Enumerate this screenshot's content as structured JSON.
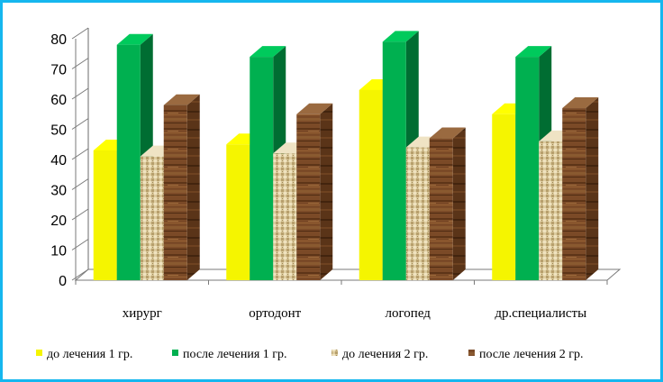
{
  "chart_data": {
    "type": "bar",
    "title": "",
    "xlabel": "",
    "ylabel": "",
    "ylim": [
      0,
      80
    ],
    "yticks": [
      0,
      10,
      20,
      30,
      40,
      50,
      60,
      70,
      80
    ],
    "categories": [
      "хирург",
      "ортодонт",
      "логопед",
      "др.специалисты"
    ],
    "series": [
      {
        "name": "до лечения 1 гр.",
        "values": [
          43,
          45,
          63,
          55
        ],
        "color": "#f5f500",
        "texture": "solid"
      },
      {
        "name": "после лечения 1 гр.",
        "values": [
          78,
          74,
          79,
          74
        ],
        "color": "#00b050",
        "texture": "solid"
      },
      {
        "name": "до лечения 2 гр.",
        "values": [
          41,
          42,
          44,
          46
        ],
        "color": "#d9c79a",
        "texture": "woven"
      },
      {
        "name": "после лечения 2 гр.",
        "values": [
          58,
          55,
          47,
          57
        ],
        "color": "#7a4a28",
        "texture": "wood"
      }
    ],
    "grid": false,
    "legend": "bottom",
    "frame_color": "#15b7ef"
  }
}
